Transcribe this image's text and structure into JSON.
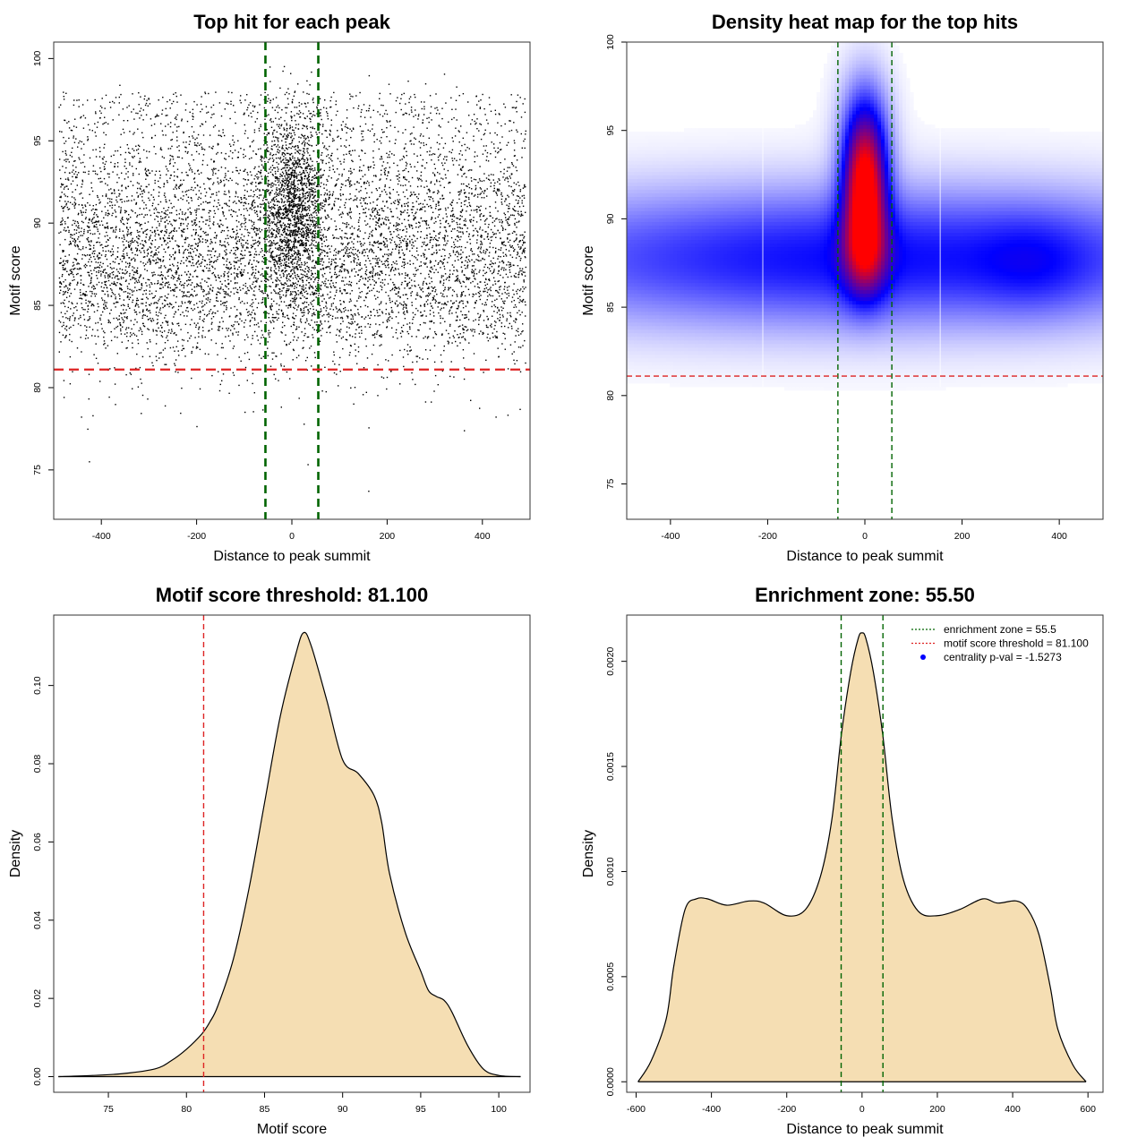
{
  "colors": {
    "points": "#000000",
    "zone_line": "#006400",
    "threshold_line": "#dd2222",
    "density_fill": "#f5deb3",
    "heat_low": "#ffffff",
    "heat_mid": "#0000ff",
    "heat_high": "#ff0000",
    "legend_point": "#0000ff"
  },
  "chart_data": [
    {
      "id": "scatter",
      "type": "scatter",
      "title": "Top hit for each peak",
      "xlabel": "Distance to peak summit",
      "ylabel": "Motif score",
      "xlim": [
        -500,
        500
      ],
      "ylim": [
        72,
        101
      ],
      "xticks": [
        -400,
        -200,
        0,
        200,
        400
      ],
      "yticks": [
        75,
        80,
        85,
        90,
        95,
        100
      ],
      "points": {
        "count": 9000,
        "background_fraction": 0.82,
        "background_score_mean": 88.0,
        "background_score_sd": 3.4,
        "center_score_mean": 91.0,
        "center_score_sd": 3.0,
        "center_sd": 32,
        "x_range": [
          -490,
          490
        ],
        "score_range": [
          73,
          99.8
        ]
      },
      "vlines": [
        -55.5,
        55.5
      ],
      "hline": 81.1
    },
    {
      "id": "heatmap",
      "type": "heatmap",
      "title": "Density heat map for the top hits",
      "xlabel": "Distance to peak summit",
      "ylabel": "Motif score",
      "xlim": [
        -490,
        490
      ],
      "ylim": [
        73,
        100
      ],
      "xticks": [
        -400,
        -200,
        0,
        200,
        400
      ],
      "yticks": [
        75,
        80,
        85,
        90,
        95,
        100
      ],
      "components": [
        {
          "cx": 0,
          "cy": 87.8,
          "sx": 600,
          "sy": 2.8,
          "w": 1.0
        },
        {
          "cx": 0,
          "cy": 92.0,
          "sx": 30,
          "sy": 2.6,
          "w": 2.2
        },
        {
          "cx": 0,
          "cy": 88.0,
          "sx": 30,
          "sy": 1.8,
          "w": 1.0
        },
        {
          "cx": 0,
          "cy": 95.5,
          "sx": 40,
          "sy": 2.5,
          "w": 0.5
        },
        {
          "cx": 350,
          "cy": 87.5,
          "sx": 80,
          "sy": 2.0,
          "w": 0.25
        }
      ],
      "vlines": [
        -55.5,
        55.5
      ],
      "white_vlines": [
        -210,
        155
      ],
      "hline": 81.1
    },
    {
      "id": "score_density",
      "type": "area",
      "title": "Motif score threshold: 81.100",
      "xlabel": "Motif score",
      "ylabel": "Density",
      "xlim": [
        71.5,
        102
      ],
      "ylim": [
        -0.004,
        0.118
      ],
      "xticks": [
        75,
        80,
        85,
        90,
        95,
        100
      ],
      "yticks": [
        0.0,
        0.02,
        0.04,
        0.06,
        0.08,
        0.1
      ],
      "ytick_labels": [
        "0.00",
        "0.02",
        "0.04",
        "0.06",
        "0.08",
        "0.10"
      ],
      "x": [
        71.8,
        74,
        76,
        78,
        79,
        80,
        81,
        81.5,
        82,
        83,
        84,
        85,
        86,
        87,
        87.5,
        88,
        89,
        90,
        91,
        92,
        92.5,
        93,
        94,
        95,
        95.5,
        96,
        96.5,
        97,
        98,
        99,
        100,
        101.4
      ],
      "values": [
        0.0,
        0.0003,
        0.0008,
        0.002,
        0.004,
        0.007,
        0.011,
        0.014,
        0.018,
        0.03,
        0.048,
        0.07,
        0.092,
        0.108,
        0.1135,
        0.11,
        0.096,
        0.081,
        0.0775,
        0.072,
        0.065,
        0.052,
        0.037,
        0.027,
        0.022,
        0.0205,
        0.0195,
        0.0165,
        0.008,
        0.002,
        0.0003,
        0.0
      ],
      "vline": 81.1
    },
    {
      "id": "distance_density",
      "type": "area",
      "title": "Enrichment zone: 55.50",
      "xlabel": "Distance to peak summit",
      "ylabel": "Density",
      "xlim": [
        -625,
        640
      ],
      "ylim": [
        -5e-05,
        0.00222
      ],
      "xticks": [
        -600,
        -400,
        -200,
        0,
        200,
        400,
        600
      ],
      "yticks": [
        0.0,
        0.0005,
        0.001,
        0.0015,
        0.002
      ],
      "ytick_labels": [
        "0.0000",
        "0.0005",
        "0.0010",
        "0.0015",
        "0.0020"
      ],
      "x": [
        -595,
        -560,
        -520,
        -500,
        -470,
        -440,
        -410,
        -360,
        -300,
        -260,
        -200,
        -150,
        -110,
        -80,
        -55,
        -30,
        -10,
        0,
        10,
        30,
        55,
        80,
        110,
        150,
        200,
        260,
        320,
        360,
        410,
        440,
        470,
        500,
        520,
        560,
        595
      ],
      "values": [
        0.0,
        0.0001,
        0.0003,
        0.00055,
        0.00082,
        0.00087,
        0.00087,
        0.00084,
        0.00086,
        0.00085,
        0.00079,
        0.00082,
        0.00098,
        0.00125,
        0.00165,
        0.00195,
        0.00211,
        0.002135,
        0.00211,
        0.00195,
        0.00165,
        0.00125,
        0.00096,
        0.00081,
        0.00079,
        0.00082,
        0.00087,
        0.00085,
        0.00086,
        0.00082,
        0.0007,
        0.00045,
        0.00025,
        8e-05,
        0.0
      ],
      "vlines": [
        -55.5,
        55.5
      ],
      "legend": [
        {
          "label": "enrichment zone = 55.5",
          "kind": "dotted-line",
          "color": "#006400"
        },
        {
          "label": "motif score threshold = 81.100",
          "kind": "dotted-line",
          "color": "#dd2222"
        },
        {
          "label": "centrality p-val = -1.5273",
          "kind": "point",
          "color": "#0000ff"
        }
      ],
      "legend_position": "top-right"
    }
  ]
}
